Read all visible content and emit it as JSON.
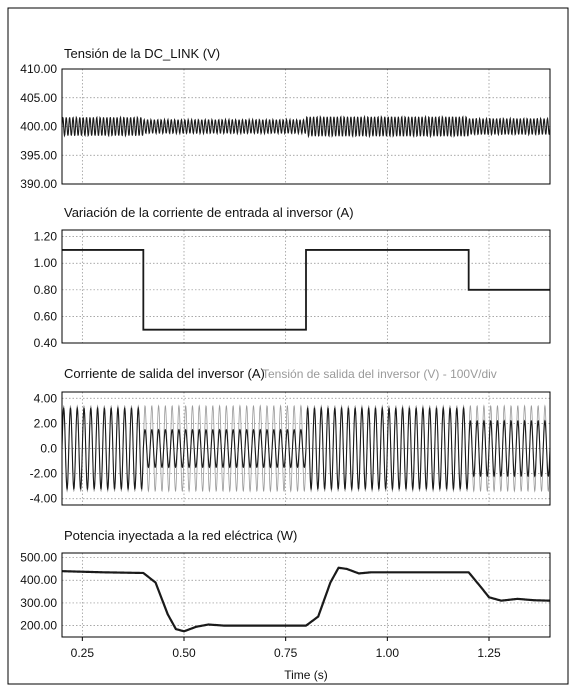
{
  "colors": {
    "trace": "#1a1a1a",
    "trace_secondary": "#9a9a9a",
    "grid": "#8c8c8c",
    "frame": "#000000",
    "background": "#ffffff"
  },
  "chart_data": [
    {
      "type": "line",
      "title": "Tensión de la DC_LINK (V)",
      "xlim": [
        0.2,
        1.4
      ],
      "ylim": [
        390,
        410
      ],
      "yticks": [
        "410.00",
        "405.00",
        "400.00",
        "395.00",
        "390.00"
      ],
      "ytick_values": [
        410,
        405,
        400,
        395,
        390
      ],
      "grid": true,
      "series": [
        {
          "x": [
            0.2,
            0.4,
            0.4,
            0.8,
            0.8,
            1.2,
            1.2,
            1.4
          ],
          "y": [
            400,
            400,
            400,
            400,
            400,
            400,
            400,
            400
          ],
          "ripple_amplitude": [
            1.6,
            1.6,
            1.2,
            1.2,
            1.7,
            1.7,
            1.4,
            1.4
          ],
          "ripple_frequency_hz": 120
        }
      ]
    },
    {
      "type": "line",
      "title": "Variación de la corriente de entrada al inversor (A)",
      "xlim": [
        0.2,
        1.4
      ],
      "ylim": [
        0.4,
        1.25
      ],
      "yticks": [
        "1.20",
        "1.00",
        "0.80",
        "0.60",
        "0.40"
      ],
      "ytick_values": [
        1.2,
        1.0,
        0.8,
        0.6,
        0.4
      ],
      "grid": true,
      "series": [
        {
          "x": [
            0.2,
            0.4,
            0.4,
            0.8,
            0.8,
            1.2,
            1.2,
            1.4
          ],
          "y": [
            1.1,
            1.1,
            0.5,
            0.5,
            1.1,
            1.1,
            0.8,
            0.8
          ]
        }
      ]
    },
    {
      "type": "line",
      "title": "Corriente de salida del inversor (A)",
      "title2": "Tensión de salida del inversor (V) - 100V/div",
      "xlim": [
        0.2,
        1.4
      ],
      "ylim": [
        -4.5,
        4.5
      ],
      "yticks": [
        "4.00",
        "2.00",
        "0.0",
        "-2.00",
        "-4.00"
      ],
      "ytick_values": [
        4,
        2,
        0,
        -2,
        -4
      ],
      "grid": true,
      "series": [
        {
          "name": "Corriente de salida del inversor (A)",
          "x": [
            0.2,
            0.4,
            0.4,
            0.8,
            0.8,
            1.2,
            1.2,
            1.4
          ],
          "amplitude": [
            3.2,
            3.2,
            1.5,
            1.5,
            3.2,
            3.2,
            2.2,
            2.2
          ],
          "frequency_hz": 60
        },
        {
          "name": "Tensión de salida del inversor (V) - 100V/div",
          "x": [
            0.2,
            1.4
          ],
          "amplitude": [
            3.4,
            3.4
          ],
          "frequency_hz": 60
        }
      ]
    },
    {
      "type": "line",
      "title": "Potencia inyectada a la red eléctrica (W)",
      "xlim": [
        0.2,
        1.4
      ],
      "ylim": [
        150,
        520
      ],
      "yticks": [
        "500.00",
        "400.00",
        "300.00",
        "200.00"
      ],
      "ytick_values": [
        500,
        400,
        300,
        200
      ],
      "grid": true,
      "series": [
        {
          "x": [
            0.2,
            0.3,
            0.4,
            0.43,
            0.46,
            0.48,
            0.5,
            0.53,
            0.56,
            0.6,
            0.7,
            0.8,
            0.83,
            0.86,
            0.88,
            0.9,
            0.93,
            0.96,
            1.0,
            1.1,
            1.2,
            1.23,
            1.25,
            1.28,
            1.32,
            1.36,
            1.4
          ],
          "y": [
            440,
            435,
            432,
            390,
            250,
            185,
            175,
            195,
            205,
            200,
            200,
            200,
            240,
            390,
            455,
            450,
            430,
            435,
            435,
            435,
            435,
            370,
            325,
            310,
            318,
            312,
            310
          ]
        }
      ]
    }
  ],
  "x_axis": {
    "ticks": [
      "0.25",
      "0.50",
      "0.75",
      "1.00",
      "1.25"
    ],
    "tick_values": [
      0.25,
      0.5,
      0.75,
      1.0,
      1.25
    ],
    "label": "Time (s)"
  }
}
